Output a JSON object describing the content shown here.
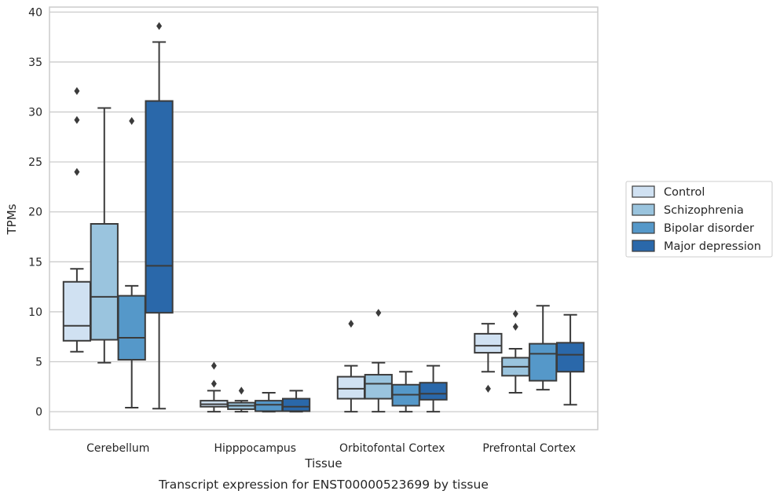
{
  "chart_data": {
    "type": "boxplot",
    "xlabel": "Tissue",
    "ylabel": "TPMs",
    "caption": "Transcript expression for ENST00000523699 by tissue",
    "ylim": [
      -1.8,
      40.5
    ],
    "yticks": [
      0,
      5,
      10,
      15,
      20,
      25,
      30,
      35,
      40
    ],
    "grid": true,
    "legend_position": "right",
    "categories": [
      "Cerebellum",
      "Hipppocampus",
      "Orbitofontal Cortex",
      "Prefrontal Cortex"
    ],
    "series": [
      {
        "name": "Control",
        "color": "#d0e1f2",
        "boxes": [
          {
            "whislo": 6.0,
            "q1": 7.1,
            "med": 8.6,
            "q3": 13.0,
            "whishi": 14.3,
            "fliers": [
              24.0,
              29.2,
              32.1
            ]
          },
          {
            "whislo": 0.0,
            "q1": 0.5,
            "med": 0.75,
            "q3": 1.1,
            "whishi": 2.1,
            "fliers": [
              2.8,
              4.6
            ]
          },
          {
            "whislo": 0.0,
            "q1": 1.3,
            "med": 2.3,
            "q3": 3.5,
            "whishi": 4.6,
            "fliers": [
              8.8
            ]
          },
          {
            "whislo": 4.0,
            "q1": 5.9,
            "med": 6.6,
            "q3": 7.8,
            "whishi": 8.8,
            "fliers": [
              2.3
            ]
          }
        ]
      },
      {
        "name": "Schizophrenia",
        "color": "#9ac4de",
        "boxes": [
          {
            "whislo": 4.9,
            "q1": 7.2,
            "med": 11.5,
            "q3": 18.8,
            "whishi": 30.4,
            "fliers": []
          },
          {
            "whislo": 0.0,
            "q1": 0.25,
            "med": 0.6,
            "q3": 0.9,
            "whishi": 1.1,
            "fliers": [
              2.1
            ]
          },
          {
            "whislo": 0.0,
            "q1": 1.3,
            "med": 2.8,
            "q3": 3.7,
            "whishi": 4.9,
            "fliers": [
              9.9
            ]
          },
          {
            "whislo": 1.9,
            "q1": 3.6,
            "med": 4.5,
            "q3": 5.4,
            "whishi": 6.3,
            "fliers": [
              8.5,
              9.8
            ]
          }
        ]
      },
      {
        "name": "Bipolar disorder",
        "color": "#5598c9",
        "boxes": [
          {
            "whislo": 0.4,
            "q1": 5.2,
            "med": 7.4,
            "q3": 11.6,
            "whishi": 12.6,
            "fliers": [
              29.1
            ]
          },
          {
            "whislo": 0.0,
            "q1": 0.05,
            "med": 0.7,
            "q3": 1.1,
            "whishi": 1.9,
            "fliers": []
          },
          {
            "whislo": 0.0,
            "q1": 0.6,
            "med": 1.7,
            "q3": 2.7,
            "whishi": 4.0,
            "fliers": []
          },
          {
            "whislo": 2.2,
            "q1": 3.1,
            "med": 5.8,
            "q3": 6.8,
            "whishi": 10.6,
            "fliers": []
          }
        ]
      },
      {
        "name": "Major depression",
        "color": "#2a68aa",
        "boxes": [
          {
            "whislo": 0.3,
            "q1": 9.9,
            "med": 14.6,
            "q3": 31.1,
            "whishi": 37.0,
            "fliers": [
              38.6
            ]
          },
          {
            "whislo": 0.0,
            "q1": 0.05,
            "med": 0.5,
            "q3": 1.3,
            "whishi": 2.1,
            "fliers": []
          },
          {
            "whislo": 0.0,
            "q1": 1.2,
            "med": 1.8,
            "q3": 2.9,
            "whishi": 4.6,
            "fliers": []
          },
          {
            "whislo": 0.7,
            "q1": 4.0,
            "med": 5.7,
            "q3": 6.9,
            "whishi": 9.7,
            "fliers": []
          }
        ]
      }
    ]
  }
}
